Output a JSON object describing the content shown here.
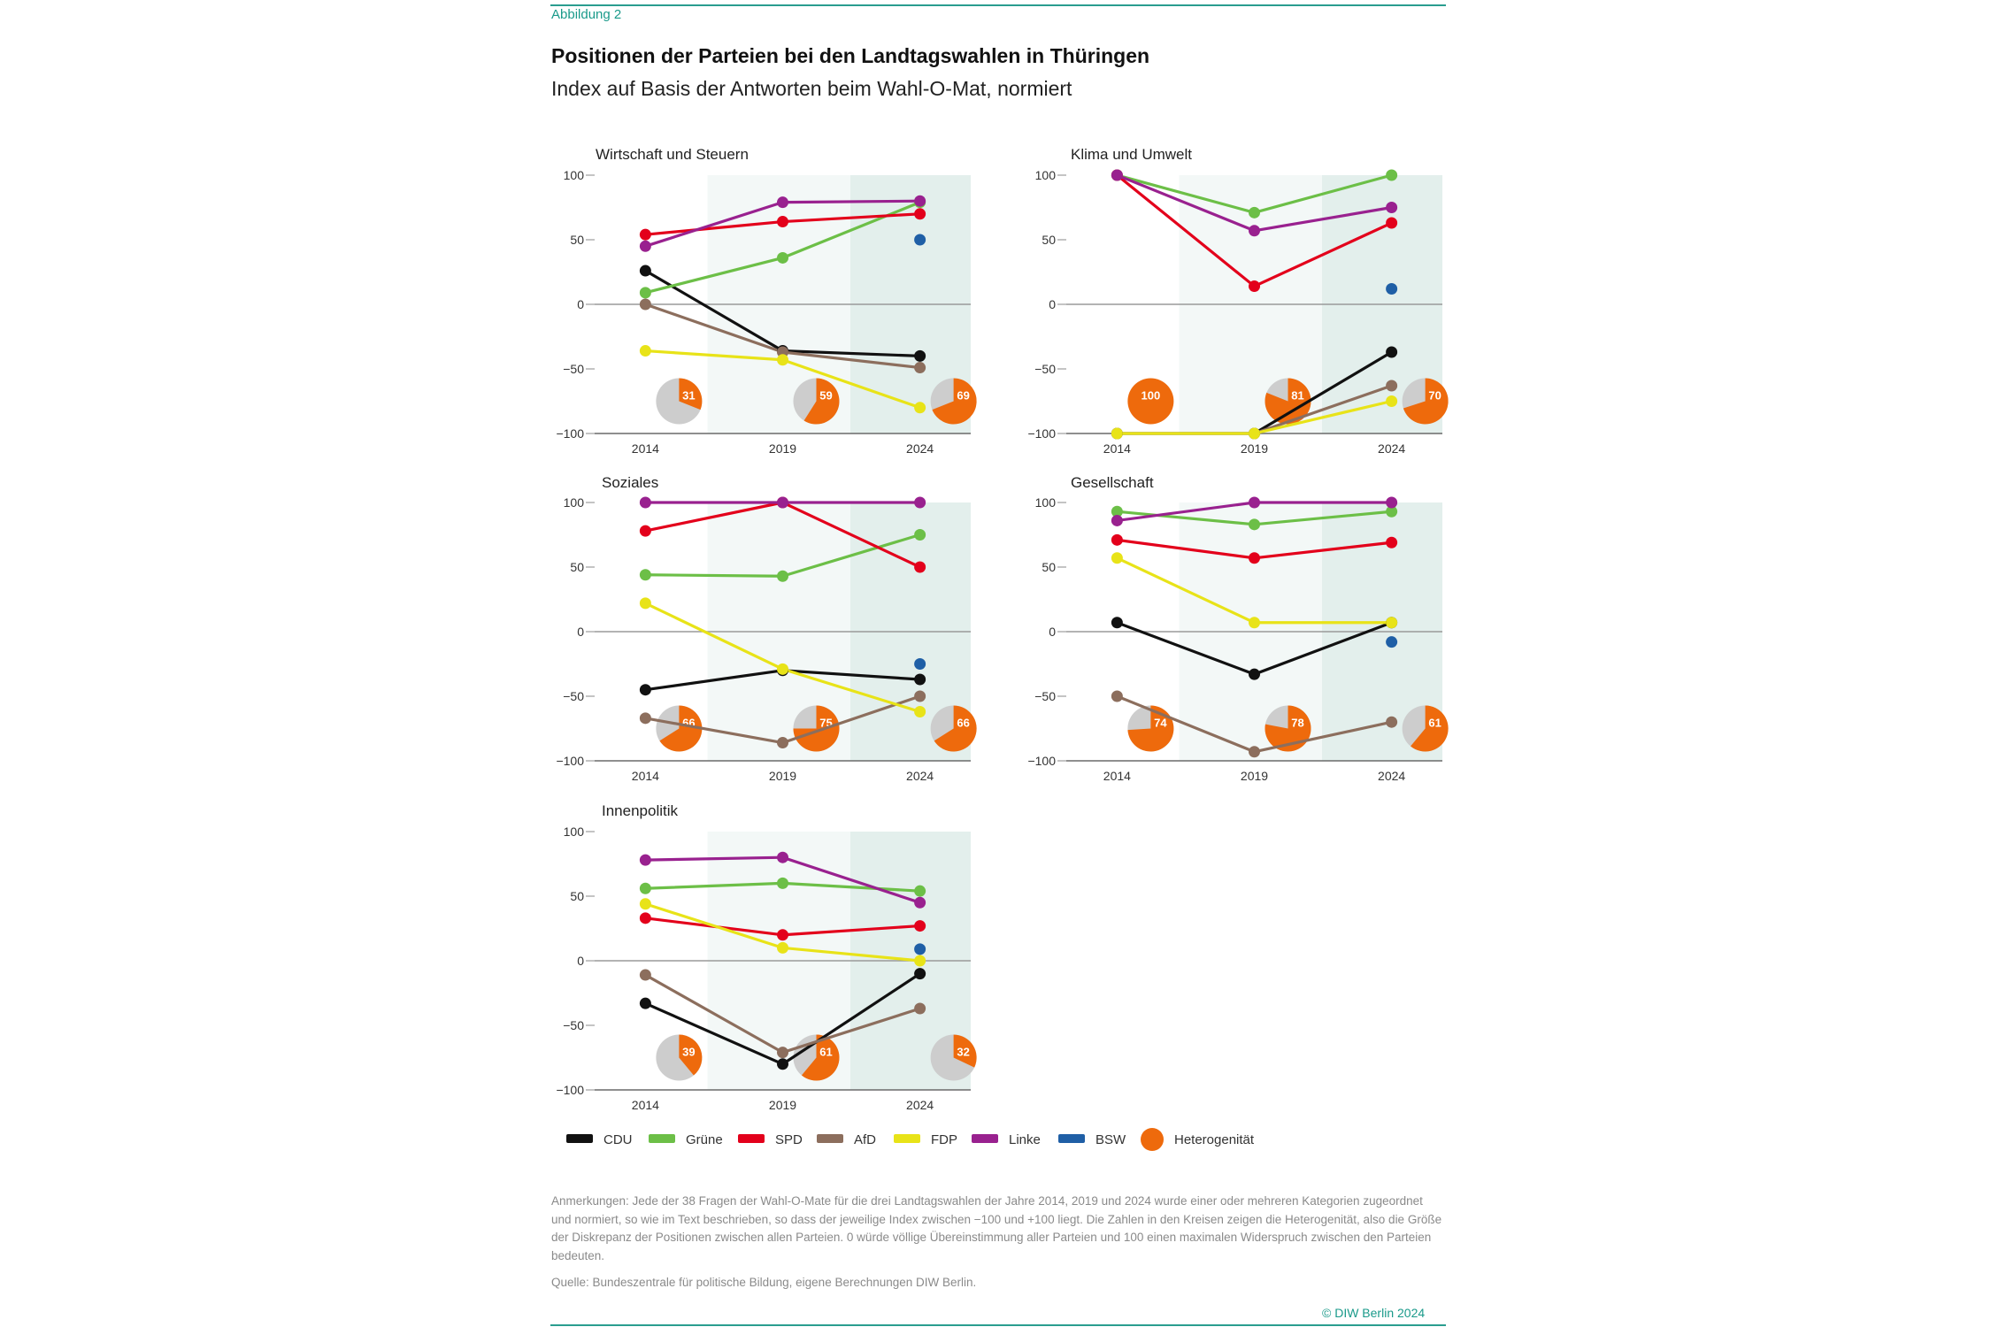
{
  "header": {
    "figure_label": "Abbildung 2",
    "title": "Positionen der Parteien bei den Landtagswahlen in Thüringen",
    "subtitle": "Index auf Basis der Antworten beim Wahl-O-Mat, normiert"
  },
  "colors": {
    "CDU": "#111111",
    "Grüne": "#6cbf47",
    "SPD": "#e3001b",
    "AfD": "#8c6e5d",
    "FDP": "#e8e318",
    "Linke": "#99218f",
    "BSW": "#1f5fa6",
    "heterogeneity": "#ee6a0c",
    "pie_bg": "#cdcdcd"
  },
  "chart_data": [
    {
      "type": "line",
      "title": "Wirtschaft und Steuern",
      "categories": [
        "2014",
        "2019",
        "2024"
      ],
      "ylim": [
        -100,
        100
      ],
      "yticks": [
        100,
        50,
        0,
        -50,
        -100
      ],
      "series": [
        {
          "name": "CDU",
          "values": [
            26,
            -36,
            -40
          ]
        },
        {
          "name": "Grüne",
          "values": [
            9,
            36,
            79
          ]
        },
        {
          "name": "SPD",
          "values": [
            54,
            64,
            70
          ]
        },
        {
          "name": "AfD",
          "values": [
            0,
            -37,
            -49
          ]
        },
        {
          "name": "FDP",
          "values": [
            -36,
            -43,
            -80
          ]
        },
        {
          "name": "Linke",
          "values": [
            45,
            79,
            80
          ]
        },
        {
          "name": "BSW",
          "values": [
            null,
            null,
            50
          ]
        }
      ],
      "heterogeneity": [
        31,
        59,
        69
      ]
    },
    {
      "type": "line",
      "title": "Klima und Umwelt",
      "categories": [
        "2014",
        "2019",
        "2024"
      ],
      "ylim": [
        -100,
        100
      ],
      "yticks": [
        100,
        50,
        0,
        -50,
        -100
      ],
      "series": [
        {
          "name": "CDU",
          "values": [
            -100,
            -100,
            -37
          ]
        },
        {
          "name": "Grüne",
          "values": [
            100,
            71,
            100
          ]
        },
        {
          "name": "SPD",
          "values": [
            100,
            14,
            63
          ]
        },
        {
          "name": "AfD",
          "values": [
            -100,
            -100,
            -63
          ]
        },
        {
          "name": "FDP",
          "values": [
            -100,
            -100,
            -75
          ]
        },
        {
          "name": "Linke",
          "values": [
            100,
            57,
            75
          ]
        },
        {
          "name": "BSW",
          "values": [
            null,
            null,
            12
          ]
        }
      ],
      "heterogeneity": [
        100,
        81,
        70
      ]
    },
    {
      "type": "line",
      "title": "Soziales",
      "categories": [
        "2014",
        "2019",
        "2024"
      ],
      "ylim": [
        -100,
        100
      ],
      "yticks": [
        100,
        50,
        0,
        -50,
        -100
      ],
      "series": [
        {
          "name": "CDU",
          "values": [
            -45,
            -30,
            -37
          ]
        },
        {
          "name": "Grüne",
          "values": [
            44,
            43,
            75
          ]
        },
        {
          "name": "SPD",
          "values": [
            78,
            100,
            50
          ]
        },
        {
          "name": "AfD",
          "values": [
            -67,
            -86,
            -50
          ]
        },
        {
          "name": "FDP",
          "values": [
            22,
            -29,
            -62
          ]
        },
        {
          "name": "Linke",
          "values": [
            100,
            100,
            100
          ]
        },
        {
          "name": "BSW",
          "values": [
            null,
            null,
            -25
          ]
        }
      ],
      "heterogeneity": [
        66,
        75,
        66
      ]
    },
    {
      "type": "line",
      "title": "Gesellschaft",
      "categories": [
        "2014",
        "2019",
        "2024"
      ],
      "ylim": [
        -100,
        100
      ],
      "yticks": [
        100,
        50,
        0,
        -50,
        -100
      ],
      "series": [
        {
          "name": "CDU",
          "values": [
            7,
            -33,
            7
          ]
        },
        {
          "name": "Grüne",
          "values": [
            93,
            83,
            93
          ]
        },
        {
          "name": "SPD",
          "values": [
            71,
            57,
            69
          ]
        },
        {
          "name": "AfD",
          "values": [
            -50,
            -93,
            -70
          ]
        },
        {
          "name": "FDP",
          "values": [
            57,
            7,
            7
          ]
        },
        {
          "name": "Linke",
          "values": [
            86,
            100,
            100
          ]
        },
        {
          "name": "BSW",
          "values": [
            null,
            null,
            -8
          ]
        }
      ],
      "heterogeneity": [
        74,
        78,
        61
      ]
    },
    {
      "type": "line",
      "title": "Innenpolitik",
      "categories": [
        "2014",
        "2019",
        "2024"
      ],
      "ylim": [
        -100,
        100
      ],
      "yticks": [
        100,
        50,
        0,
        -50,
        -100
      ],
      "series": [
        {
          "name": "CDU",
          "values": [
            -33,
            -80,
            -10
          ]
        },
        {
          "name": "Grüne",
          "values": [
            56,
            60,
            54
          ]
        },
        {
          "name": "SPD",
          "values": [
            33,
            20,
            27
          ]
        },
        {
          "name": "AfD",
          "values": [
            -11,
            -71,
            -37
          ]
        },
        {
          "name": "FDP",
          "values": [
            44,
            10,
            0
          ]
        },
        {
          "name": "Linke",
          "values": [
            78,
            80,
            45
          ]
        },
        {
          "name": "BSW",
          "values": [
            null,
            null,
            9
          ]
        }
      ],
      "heterogeneity": [
        39,
        61,
        32
      ]
    }
  ],
  "legend": {
    "items": [
      "CDU",
      "Grüne",
      "SPD",
      "AfD",
      "FDP",
      "Linke",
      "BSW"
    ],
    "heterogeneity_label": "Heterogenität"
  },
  "footer": {
    "notes": "Anmerkungen: Jede der 38 Fragen der Wahl-O-Mate für die drei Landtagswahlen der Jahre 2014, 2019 und 2024 wurde einer oder mehreren Kategorien zugeordnet und normiert, so wie im Text beschrieben, so dass der jeweilige Index zwischen −100 und +100 liegt. Die Zahlen in den Kreisen zeigen die Heterogenität, also die Größe der Diskrepanz der Positionen zwischen allen Parteien. 0 würde völlige Übereinstimmung aller Parteien und 100 einen maximalen Widerspruch zwischen den Parteien bedeuten.",
    "source": "Quelle: Bundeszentrale für politische Bildung, eigene Berechnungen DIW Berlin.",
    "copyright": "© DIW Berlin 2024"
  }
}
